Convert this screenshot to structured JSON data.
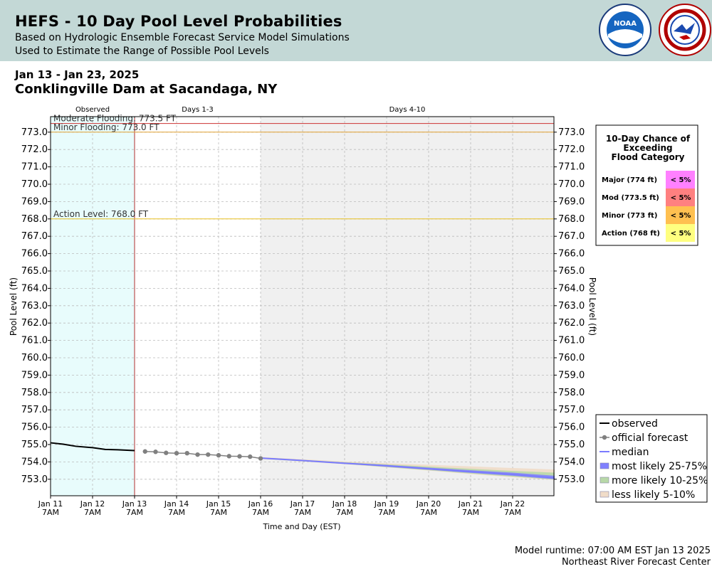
{
  "header": {
    "title": "HEFS - 10 Day Pool Level Probabilities",
    "subtitle_1": "Based on Hydrologic Ensemble Forecast Service Model Simulations",
    "subtitle_2": "Used to Estimate the Range of Possible Pool Levels",
    "logo_noaa": "NOAA",
    "logo_nws": "NATIONAL WEATHER SERVICE"
  },
  "date_range": "Jan 13 - Jan 23, 2025",
  "station": "Conklingville Dam at Sacandaga, NY",
  "chart_data": {
    "type": "line",
    "ylabel": "Pool Level (ft)",
    "xlabel": "Time and Day (EST)",
    "ylim": [
      752.0,
      774.5
    ],
    "y_ticks": [
      "773.0",
      "772.0",
      "771.0",
      "770.0",
      "769.0",
      "768.0",
      "767.0",
      "766.0",
      "765.0",
      "764.0",
      "763.0",
      "762.0",
      "761.0",
      "760.0",
      "759.0",
      "758.0",
      "757.0",
      "756.0",
      "755.0",
      "754.0",
      "753.0"
    ],
    "x_ticks": [
      {
        "day": 0,
        "line1": "Jan 11",
        "line2": "7AM"
      },
      {
        "day": 1,
        "line1": "Jan 12",
        "line2": "7AM"
      },
      {
        "day": 2,
        "line1": "Jan 13",
        "line2": "7AM"
      },
      {
        "day": 3,
        "line1": "Jan 14",
        "line2": "7AM"
      },
      {
        "day": 4,
        "line1": "Jan 15",
        "line2": "7AM"
      },
      {
        "day": 5,
        "line1": "Jan 16",
        "line2": "7AM"
      },
      {
        "day": 6,
        "line1": "Jan 17",
        "line2": "7AM"
      },
      {
        "day": 7,
        "line1": "Jan 18",
        "line2": "7AM"
      },
      {
        "day": 8,
        "line1": "Jan 19",
        "line2": "7AM"
      },
      {
        "day": 9,
        "line1": "Jan 20",
        "line2": "7AM"
      },
      {
        "day": 10,
        "line1": "Jan 21",
        "line2": "7AM"
      },
      {
        "day": 11,
        "line1": "Jan 22",
        "line2": "7AM"
      }
    ],
    "period_labels": {
      "observed": "Observed",
      "days_1_3": "Days 1-3",
      "days_4_10": "Days 4-10"
    },
    "thresholds": [
      {
        "label": "Moderate Flooding: 773.5 FT",
        "value": 773.5,
        "color": "#cc3333"
      },
      {
        "label": "Minor Flooding: 773.0 FT",
        "value": 773.0,
        "color": "#e0a030"
      },
      {
        "label": "Action Level: 768.0 FT",
        "value": 768.0,
        "color": "#e8c020"
      }
    ],
    "series": [
      {
        "name": "observed",
        "color": "#000000",
        "x": [
          0,
          0.3,
          0.6,
          1.0,
          1.3,
          1.6,
          2.0
        ],
        "y": [
          755.1,
          755.02,
          754.9,
          754.82,
          754.72,
          754.7,
          754.65
        ]
      },
      {
        "name": "official forecast",
        "color": "#808080",
        "x": [
          2.25,
          2.5,
          2.75,
          3.0,
          3.25,
          3.5,
          3.75,
          4.0,
          4.25,
          4.5,
          4.75,
          5.0
        ],
        "y": [
          754.6,
          754.58,
          754.52,
          754.5,
          754.5,
          754.42,
          754.42,
          754.38,
          754.33,
          754.32,
          754.3,
          754.2
        ]
      },
      {
        "name": "median",
        "color": "#7b7bff",
        "x": [
          5.0,
          6.0,
          7.0,
          8.0,
          9.0,
          10.0,
          11.0,
          12.0
        ],
        "y": [
          754.22,
          754.08,
          753.92,
          753.78,
          753.6,
          753.43,
          753.28,
          753.08
        ]
      },
      {
        "name": "most likely 25-75%",
        "color": "#8080ff",
        "x": [
          5.0,
          6.0,
          7.0,
          8.0,
          9.0,
          10.0,
          11.0,
          12.0
        ],
        "low": [
          754.2,
          754.05,
          753.9,
          753.72,
          753.55,
          753.37,
          753.2,
          753.0
        ],
        "high": [
          754.24,
          754.1,
          753.96,
          753.82,
          753.67,
          753.52,
          753.38,
          753.2
        ]
      },
      {
        "name": "more likely 10-25%",
        "color": "#b8d8a8",
        "x": [
          5.0,
          6.0,
          7.0,
          8.0,
          9.0,
          10.0,
          11.0,
          12.0
        ],
        "low": [
          754.18,
          754.03,
          753.88,
          753.7,
          753.52,
          753.33,
          753.15,
          752.98
        ],
        "high": [
          754.26,
          754.12,
          753.98,
          753.86,
          753.73,
          753.6,
          753.48,
          753.38
        ]
      },
      {
        "name": "less likely 5-10%",
        "color": "#f0dcc8",
        "x": [
          5.0,
          6.0,
          7.0,
          8.0,
          9.0,
          10.0,
          11.0,
          12.0
        ],
        "low": [
          754.17,
          754.02,
          753.87,
          753.69,
          753.5,
          753.3,
          753.12,
          752.96
        ],
        "high": [
          754.28,
          754.15,
          754.02,
          753.92,
          753.83,
          753.74,
          753.65,
          753.56
        ]
      }
    ],
    "legend": [
      "observed",
      "official forecast",
      "median",
      "most likely 25-75%",
      "more likely 10-25%",
      "less likely 5-10%"
    ]
  },
  "chance_table": {
    "title_1": "10-Day Chance of",
    "title_2": "Exceeding",
    "title_3": "Flood Category",
    "rows": [
      {
        "label": "Major (774 ft)",
        "value": "< 5%",
        "color": "#ff80ff"
      },
      {
        "label": "Mod (773.5 ft)",
        "value": "< 5%",
        "color": "#ff8080"
      },
      {
        "label": "Minor (773 ft)",
        "value": "< 5%",
        "color": "#ffc050"
      },
      {
        "label": "Action (768 ft)",
        "value": "< 5%",
        "color": "#ffff80"
      }
    ]
  },
  "footer": {
    "runtime": "Model runtime: 07:00 AM EST Jan 13 2025",
    "center": "Northeast River Forecast Center"
  }
}
